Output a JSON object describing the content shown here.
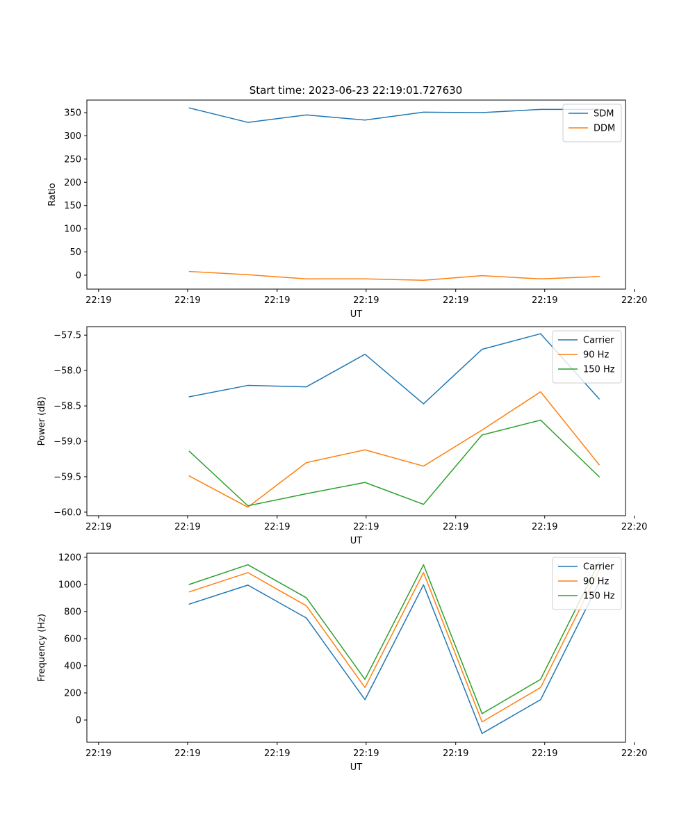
{
  "figure": {
    "title": "Start time: 2023-06-23 22:19:01.727630"
  },
  "colors": {
    "blue": "#1f77b4",
    "orange": "#ff7f0e",
    "green": "#2ca02c"
  },
  "chart_data": [
    {
      "type": "line",
      "title": "Start time: 2023-06-23 22:19:01.727630",
      "xlabel": "UT",
      "ylabel": "Ratio",
      "x": [
        1.0,
        2.0,
        3.0,
        4.0,
        5.0,
        6.0,
        7.0,
        8.0
      ],
      "xlim": [
        -0.75,
        8.45
      ],
      "x_tick_positions": [
        -0.55,
        0.97,
        2.5,
        4.02,
        5.55,
        7.07,
        8.6
      ],
      "x_tick_labels": [
        "22:19",
        "22:19",
        "22:19",
        "22:19",
        "22:19",
        "22:19",
        "22:20"
      ],
      "ylim": [
        -30,
        377
      ],
      "y_ticks": [
        0,
        50,
        100,
        150,
        200,
        250,
        300,
        350
      ],
      "grid": false,
      "legend": "top-right",
      "series": [
        {
          "name": "SDM",
          "color": "#1f77b4",
          "values": [
            360,
            329,
            345,
            334,
            351,
            350,
            357,
            357
          ]
        },
        {
          "name": "DDM",
          "color": "#ff7f0e",
          "values": [
            8,
            1,
            -8,
            -8,
            -11,
            -1,
            -8,
            -3
          ]
        }
      ]
    },
    {
      "type": "line",
      "title": "",
      "xlabel": "UT",
      "ylabel": "Power (dB)",
      "x": [
        1.0,
        2.0,
        3.0,
        4.0,
        5.0,
        6.0,
        7.0,
        8.0
      ],
      "xlim": [
        -0.75,
        8.45
      ],
      "x_tick_positions": [
        -0.55,
        0.97,
        2.5,
        4.02,
        5.55,
        7.07,
        8.6
      ],
      "x_tick_labels": [
        "22:19",
        "22:19",
        "22:19",
        "22:19",
        "22:19",
        "22:19",
        "22:20"
      ],
      "ylim": [
        -60.05,
        -57.38
      ],
      "y_ticks": [
        -60.0,
        -59.5,
        -59.0,
        -58.5,
        -58.0,
        -57.5
      ],
      "y_tick_labels": [
        "−60.0",
        "−59.5",
        "−59.0",
        "−58.5",
        "−58.0",
        "−57.5"
      ],
      "grid": false,
      "legend": "top-right",
      "series": [
        {
          "name": "Carrier",
          "color": "#1f77b4",
          "values": [
            -58.37,
            -58.21,
            -58.23,
            -57.77,
            -58.47,
            -57.7,
            -57.48,
            -58.4
          ]
        },
        {
          "name": "90 Hz",
          "color": "#ff7f0e",
          "values": [
            -59.49,
            -59.93,
            -59.3,
            -59.12,
            -59.35,
            -58.84,
            -58.3,
            -59.33
          ]
        },
        {
          "name": "150 Hz",
          "color": "#2ca02c",
          "values": [
            -59.14,
            -59.91,
            -59.74,
            -59.58,
            -59.89,
            -58.91,
            -58.7,
            -59.5
          ]
        }
      ]
    },
    {
      "type": "line",
      "title": "",
      "xlabel": "UT",
      "ylabel": "Frequency (Hz)",
      "x": [
        1.0,
        2.0,
        3.0,
        4.0,
        5.0,
        6.0,
        7.0,
        8.0
      ],
      "xlim": [
        -0.75,
        8.45
      ],
      "x_tick_positions": [
        -0.55,
        0.97,
        2.5,
        4.02,
        5.55,
        7.07,
        8.6
      ],
      "x_tick_labels": [
        "22:19",
        "22:19",
        "22:19",
        "22:19",
        "22:19",
        "22:19",
        "22:20"
      ],
      "ylim": [
        -164,
        1230
      ],
      "y_ticks": [
        0,
        200,
        400,
        600,
        800,
        1000,
        1200
      ],
      "grid": false,
      "legend": "top-right",
      "series": [
        {
          "name": "Carrier",
          "color": "#1f77b4",
          "values": [
            855,
            995,
            752,
            150,
            997,
            -99,
            150,
            1015
          ]
        },
        {
          "name": "90 Hz",
          "color": "#ff7f0e",
          "values": [
            945,
            1087,
            842,
            240,
            1087,
            -14,
            240,
            1105
          ]
        },
        {
          "name": "150 Hz",
          "color": "#2ca02c",
          "values": [
            1000,
            1145,
            901,
            300,
            1145,
            47,
            300,
            1165
          ]
        }
      ]
    }
  ]
}
